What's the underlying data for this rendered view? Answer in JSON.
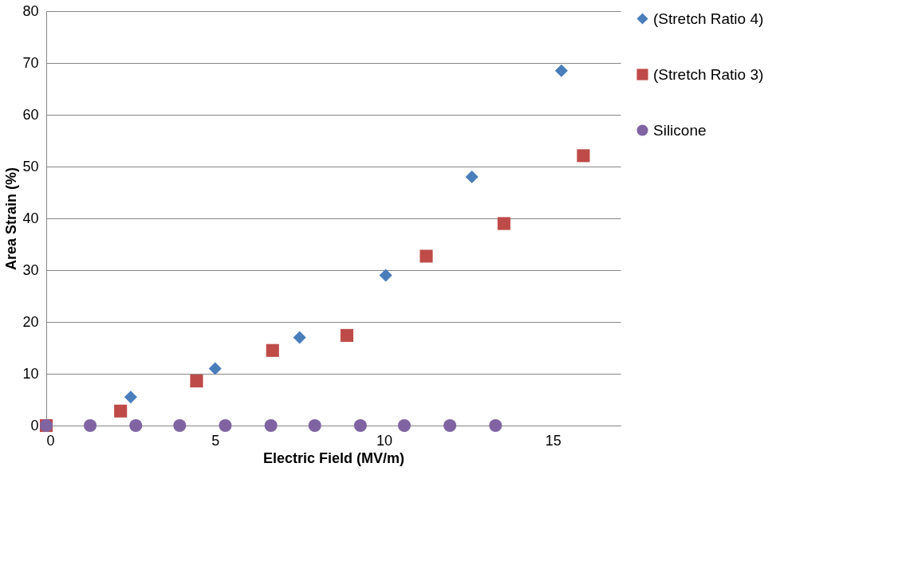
{
  "chart_data": {
    "type": "scatter",
    "xlabel": "Electric Field (MV/m)",
    "ylabel": "Area Strain (%)",
    "xlim": [
      0,
      17
    ],
    "xticks": [
      0,
      5,
      10,
      15
    ],
    "ylim": [
      0,
      80
    ],
    "yticks": [
      0,
      10,
      20,
      30,
      40,
      50,
      60,
      70,
      80
    ],
    "grid": "y",
    "legend": "right",
    "series": [
      {
        "name": "(Stretch Ratio 4)",
        "color": "#4a7ebb",
        "marker": "diamond",
        "x": [
          2.5,
          5,
          7.5,
          10.05,
          12.6,
          15.25
        ],
        "values": [
          5.5,
          11,
          17,
          29,
          48,
          68.5
        ]
      },
      {
        "name": "(Stretch Ratio 3)",
        "color": "#be4b48",
        "marker": "square",
        "x": [
          0,
          2.2,
          4.45,
          6.7,
          8.9,
          11.25,
          13.55,
          15.9
        ],
        "values": [
          0,
          2.8,
          8.6,
          14.5,
          17.4,
          32.7,
          39,
          52.1
        ]
      },
      {
        "name": "Silicone",
        "color": "#8064a2",
        "marker": "circle",
        "x": [
          0,
          1.3,
          2.65,
          3.95,
          5.3,
          6.65,
          7.95,
          9.3,
          10.6,
          11.95,
          13.3
        ],
        "values": [
          0,
          0,
          0,
          0,
          0,
          0,
          0,
          0,
          0,
          0,
          0
        ]
      }
    ]
  }
}
